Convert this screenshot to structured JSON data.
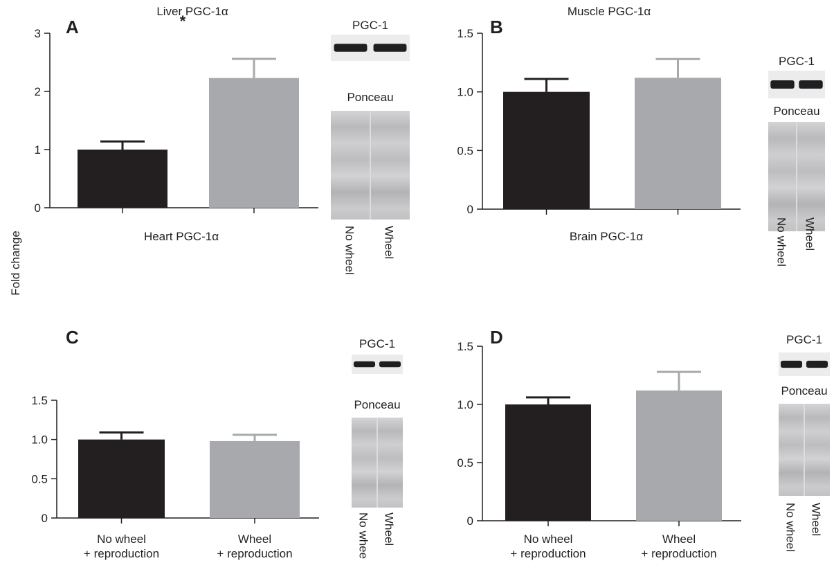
{
  "y_axis_label": "Fold change",
  "lane_labels": [
    "No wheel",
    "Wheel"
  ],
  "blot_titles": {
    "protein": "PGC-1",
    "loading": "Ponceau"
  },
  "colors": {
    "no_wheel": "#231f20",
    "wheel": "#a7a9ac",
    "axis": "#231f20"
  },
  "chart_data": [
    {
      "panel": "A",
      "type": "bar",
      "title": "Liver PGC-1α",
      "categories": [
        "",
        ""
      ],
      "values": [
        1.0,
        2.23
      ],
      "errors": [
        0.14,
        0.33
      ],
      "yticks": [
        0,
        1,
        2,
        3
      ],
      "ylim": [
        0,
        3
      ],
      "annotation": "*",
      "blot": {
        "protein": "PGC-1",
        "loading": "Ponceau",
        "lanes": [
          "No wheel",
          "Wheel"
        ]
      }
    },
    {
      "panel": "B",
      "type": "bar",
      "title": "Muscle PGC-1α",
      "categories": [
        "",
        ""
      ],
      "values": [
        1.0,
        1.12
      ],
      "errors": [
        0.11,
        0.16
      ],
      "yticks": [
        0,
        0.5,
        1.0,
        1.5
      ],
      "ylim": [
        0,
        1.5
      ],
      "blot": {
        "protein": "PGC-1",
        "loading": "Ponceau",
        "lanes": [
          "No wheel",
          "Wheel"
        ]
      }
    },
    {
      "panel": "C",
      "type": "bar",
      "title": "Heart PGC-1α",
      "categories": [
        "No wheel\n+ reproduction",
        "Wheel\n+ reproduction"
      ],
      "values": [
        1.0,
        0.98
      ],
      "errors": [
        0.09,
        0.08
      ],
      "yticks": [
        0,
        0.5,
        1.0,
        1.5
      ],
      "ylim": [
        0,
        1.5
      ],
      "blot": {
        "protein": "PGC-1",
        "loading": "Ponceau",
        "lanes": [
          "No whee",
          "Wheel"
        ]
      }
    },
    {
      "panel": "D",
      "type": "bar",
      "title": "Brain PGC-1α",
      "categories": [
        "No wheel\n+ reproduction",
        "Wheel\n+ reproduction"
      ],
      "values": [
        1.0,
        1.12
      ],
      "errors": [
        0.06,
        0.16
      ],
      "yticks": [
        0,
        0.5,
        1.0,
        1.5
      ],
      "ylim": [
        0,
        1.5
      ],
      "blot": {
        "protein": "PGC-1",
        "loading": "Ponceau",
        "lanes": [
          "No wheel",
          "Wheel"
        ]
      }
    }
  ]
}
